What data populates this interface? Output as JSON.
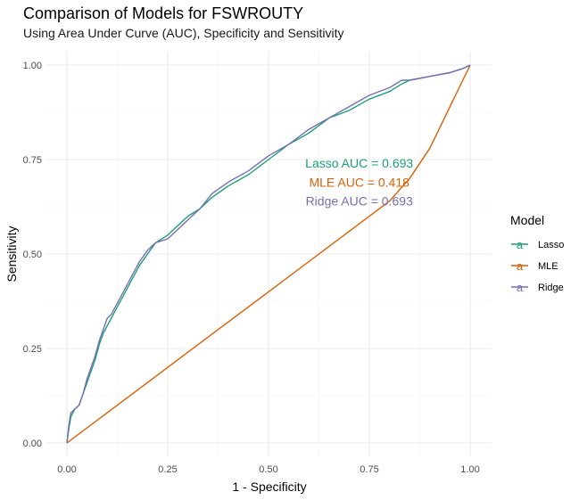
{
  "chart_data": {
    "type": "line",
    "title": "Comparison of Models for FSWROUTY",
    "subtitle": "Using Area Under Curve (AUC), Specificity and Sensitivity",
    "xlabel": "1 - Specificity",
    "ylabel": "Sensitivity",
    "xlim": [
      0,
      1
    ],
    "ylim": [
      0,
      1
    ],
    "xticks": [
      "0.00",
      "0.25",
      "0.50",
      "0.75",
      "1.00"
    ],
    "yticks": [
      "0.00",
      "0.25",
      "0.50",
      "0.75",
      "1.00"
    ],
    "grid": true,
    "legend": {
      "title": "Model",
      "position": "right",
      "entries": [
        {
          "name": "Lasso",
          "color": "#1B9E77"
        },
        {
          "name": "MLE",
          "color": "#D95F02"
        },
        {
          "name": "Ridge",
          "color": "#7570B3"
        }
      ]
    },
    "annotations": [
      {
        "text": "Lasso AUC = 0.693",
        "x": 0.725,
        "y": 0.74,
        "color": "#1B9E77"
      },
      {
        "text": "MLE AUC = 0.418",
        "x": 0.725,
        "y": 0.69,
        "color": "#D95F02"
      },
      {
        "text": "Ridge AUC = 0.693",
        "x": 0.725,
        "y": 0.64,
        "color": "#7570B3"
      }
    ],
    "series": [
      {
        "name": "Lasso",
        "color": "#1B9E77",
        "x": [
          0,
          0.005,
          0.01,
          0.02,
          0.03,
          0.04,
          0.05,
          0.06,
          0.07,
          0.08,
          0.09,
          0.1,
          0.11,
          0.12,
          0.14,
          0.16,
          0.18,
          0.2,
          0.22,
          0.25,
          0.27,
          0.3,
          0.33,
          0.36,
          0.4,
          0.45,
          0.5,
          0.55,
          0.6,
          0.65,
          0.7,
          0.75,
          0.8,
          0.83,
          0.85,
          0.9,
          0.95,
          0.98,
          1.0
        ],
        "y": [
          0,
          0.04,
          0.07,
          0.09,
          0.1,
          0.13,
          0.16,
          0.19,
          0.22,
          0.26,
          0.29,
          0.31,
          0.33,
          0.35,
          0.39,
          0.43,
          0.47,
          0.5,
          0.53,
          0.55,
          0.57,
          0.6,
          0.62,
          0.65,
          0.68,
          0.71,
          0.75,
          0.79,
          0.82,
          0.86,
          0.88,
          0.91,
          0.93,
          0.95,
          0.96,
          0.97,
          0.98,
          0.99,
          1.0
        ]
      },
      {
        "name": "MLE",
        "color": "#D95F02",
        "x": [
          0,
          0.1,
          0.2,
          0.3,
          0.4,
          0.5,
          0.6,
          0.7,
          0.8,
          0.85,
          0.9,
          0.95,
          1.0
        ],
        "y": [
          0,
          0.08,
          0.16,
          0.24,
          0.32,
          0.4,
          0.48,
          0.56,
          0.64,
          0.7,
          0.78,
          0.89,
          1.0
        ]
      },
      {
        "name": "Ridge",
        "color": "#7570B3",
        "x": [
          0,
          0.005,
          0.01,
          0.02,
          0.03,
          0.04,
          0.05,
          0.06,
          0.07,
          0.08,
          0.09,
          0.1,
          0.11,
          0.12,
          0.14,
          0.16,
          0.18,
          0.2,
          0.22,
          0.25,
          0.27,
          0.3,
          0.33,
          0.36,
          0.4,
          0.45,
          0.5,
          0.55,
          0.6,
          0.65,
          0.7,
          0.75,
          0.8,
          0.83,
          0.85,
          0.9,
          0.95,
          0.98,
          1.0
        ],
        "y": [
          0,
          0.05,
          0.08,
          0.09,
          0.1,
          0.13,
          0.17,
          0.2,
          0.23,
          0.27,
          0.3,
          0.33,
          0.34,
          0.36,
          0.4,
          0.44,
          0.48,
          0.51,
          0.53,
          0.54,
          0.56,
          0.59,
          0.62,
          0.66,
          0.69,
          0.72,
          0.76,
          0.79,
          0.83,
          0.86,
          0.89,
          0.92,
          0.94,
          0.96,
          0.96,
          0.97,
          0.98,
          0.99,
          1.0
        ]
      }
    ]
  }
}
